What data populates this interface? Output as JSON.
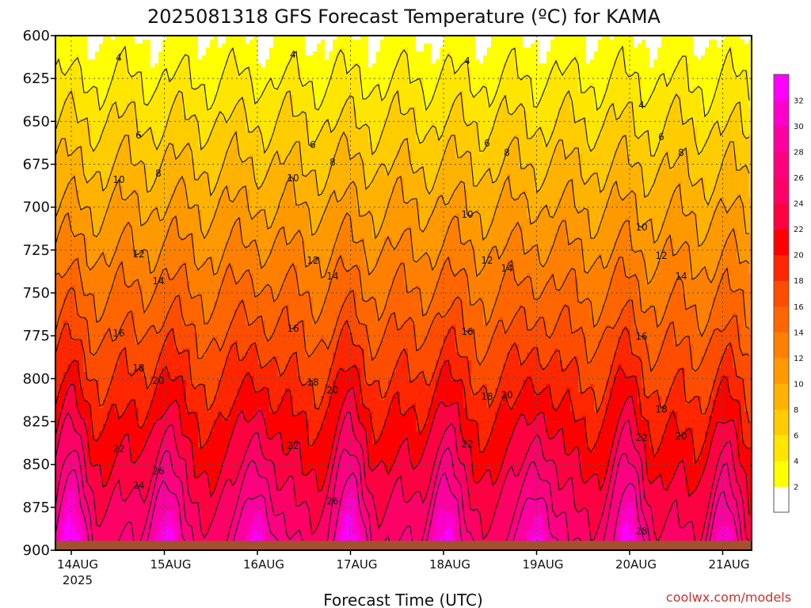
{
  "chart_data": {
    "type": "heatmap",
    "title": "2025081318 GFS Forecast Temperature (ºC) for KAMA",
    "xlabel": "Forecast Time (UTC)",
    "ylabel": "",
    "credit": "coolwx.com/models",
    "y_axis": {
      "ticks": [
        "600",
        "625",
        "650",
        "675",
        "700",
        "725",
        "750",
        "775",
        "800",
        "825",
        "850",
        "875",
        "900"
      ],
      "range": [
        600,
        900
      ],
      "inverted": true
    },
    "x_axis": {
      "ticks": [
        "14AUG",
        "15AUG",
        "16AUG",
        "17AUG",
        "18AUG",
        "19AUG",
        "20AUG",
        "21AUG"
      ],
      "year_label": "2025"
    },
    "colorbar": {
      "ticks": [
        "2",
        "4",
        "6",
        "8",
        "10",
        "12",
        "14",
        "16",
        "18",
        "20",
        "22",
        "24",
        "26",
        "28",
        "30",
        "32"
      ],
      "colors": [
        "#ffffff",
        "#ffff00",
        "#ffe600",
        "#ffcc00",
        "#ffb300",
        "#ff9900",
        "#ff8000",
        "#ff6600",
        "#ff4d00",
        "#ff2600",
        "#ff0000",
        "#ff0040",
        "#ff0066",
        "#ff0080",
        "#ff00a0",
        "#ff00cc",
        "#ff00ff"
      ]
    },
    "grid": true,
    "contour_labels": [
      "4",
      "6",
      "8",
      "10",
      "12",
      "14",
      "16",
      "18",
      "20",
      "22",
      "24",
      "26",
      "28"
    ],
    "ground_color": "#a0522d"
  }
}
